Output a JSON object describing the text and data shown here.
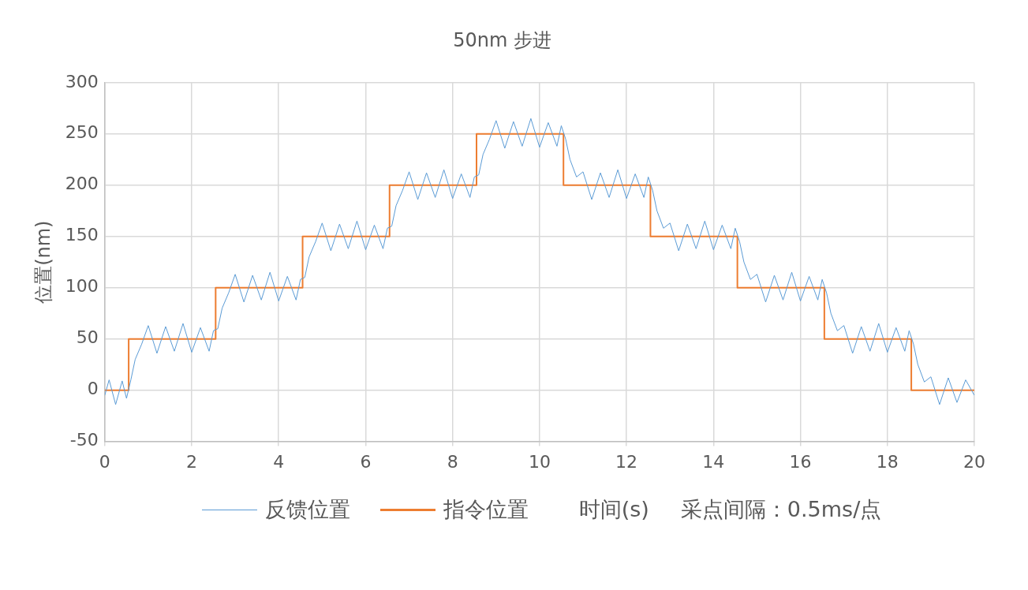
{
  "chart_data": {
    "type": "line",
    "title": "50nm 步进",
    "ylabel": "位置(nm)",
    "xlabel": "时间(s)",
    "annotations": [
      "采点间隔：0.5ms/点"
    ],
    "xlim": [
      0,
      20
    ],
    "xticks": [
      0,
      2,
      4,
      6,
      8,
      10,
      12,
      14,
      16,
      18,
      20
    ],
    "ylim": [
      -50,
      300
    ],
    "yticks": [
      -50,
      0,
      50,
      100,
      150,
      200,
      250,
      300
    ],
    "grid": true,
    "legend": "bottom",
    "marker": "none",
    "series": [
      {
        "name": "反馈位置",
        "color": "#5b9bd5",
        "x": [
          0,
          0.1,
          0.25,
          0.4,
          0.5,
          0.6,
          0.7,
          0.85,
          1.0,
          1.2,
          1.4,
          1.6,
          1.8,
          2.0,
          2.2,
          2.4,
          2.5,
          2.6,
          2.7,
          2.85,
          3.0,
          3.2,
          3.4,
          3.6,
          3.8,
          4.0,
          4.2,
          4.4,
          4.5,
          4.6,
          4.7,
          4.85,
          5.0,
          5.2,
          5.4,
          5.6,
          5.8,
          6.0,
          6.2,
          6.4,
          6.5,
          6.6,
          6.7,
          6.85,
          7.0,
          7.2,
          7.4,
          7.6,
          7.8,
          8.0,
          8.2,
          8.4,
          8.5,
          8.6,
          8.7,
          8.85,
          9.0,
          9.2,
          9.4,
          9.6,
          9.8,
          10.0,
          10.2,
          10.4,
          10.5,
          10.6,
          10.7,
          10.85,
          11.0,
          11.2,
          11.4,
          11.6,
          11.8,
          12.0,
          12.2,
          12.4,
          12.5,
          12.6,
          12.7,
          12.85,
          13.0,
          13.2,
          13.4,
          13.6,
          13.8,
          14.0,
          14.2,
          14.4,
          14.5,
          14.6,
          14.7,
          14.85,
          15.0,
          15.2,
          15.4,
          15.6,
          15.8,
          16.0,
          16.2,
          16.4,
          16.5,
          16.6,
          16.7,
          16.85,
          17.0,
          17.2,
          17.4,
          17.6,
          17.8,
          18.0,
          18.2,
          18.4,
          18.5,
          18.6,
          18.7,
          18.85,
          19.0,
          19.2,
          19.4,
          19.6,
          19.8,
          20.0
        ],
        "values": [
          -5,
          10,
          -14,
          9,
          -8,
          10,
          30,
          45,
          63,
          36,
          62,
          38,
          65,
          37,
          61,
          38,
          58,
          60,
          80,
          95,
          113,
          86,
          112,
          88,
          115,
          87,
          111,
          88,
          108,
          110,
          130,
          145,
          163,
          136,
          162,
          138,
          165,
          137,
          161,
          138,
          158,
          160,
          180,
          195,
          213,
          186,
          212,
          188,
          215,
          187,
          211,
          188,
          208,
          210,
          230,
          245,
          263,
          236,
          262,
          238,
          265,
          237,
          261,
          238,
          258,
          245,
          225,
          208,
          213,
          186,
          212,
          188,
          215,
          187,
          211,
          188,
          208,
          195,
          175,
          158,
          163,
          136,
          162,
          138,
          165,
          137,
          161,
          138,
          158,
          145,
          125,
          108,
          113,
          86,
          112,
          88,
          115,
          87,
          111,
          88,
          108,
          95,
          75,
          58,
          63,
          36,
          62,
          38,
          65,
          37,
          61,
          38,
          58,
          45,
          25,
          8,
          13,
          -14,
          12,
          -12,
          10,
          -5
        ]
      },
      {
        "name": "指令位置",
        "color": "#ed7d31",
        "type": "step",
        "x": [
          0,
          0.55,
          2.55,
          4.55,
          6.55,
          8.55,
          10.55,
          12.55,
          14.55,
          16.55,
          18.55,
          20
        ],
        "values": [
          0,
          50,
          100,
          150,
          200,
          250,
          200,
          150,
          100,
          50,
          0,
          0
        ]
      }
    ]
  }
}
